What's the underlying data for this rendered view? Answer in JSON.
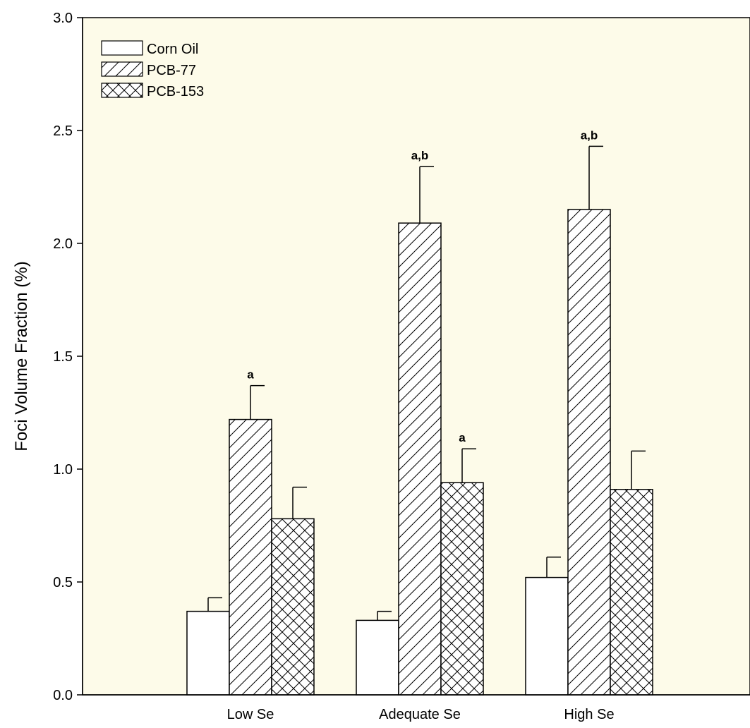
{
  "colors": {
    "plot_background": "#fdfbe9",
    "bar_fill": "#ffffff",
    "stroke": "#000000"
  },
  "chart_data": {
    "type": "bar",
    "title": "",
    "xlabel": "",
    "ylabel": "Foci Volume Fraction (%)",
    "ylim": [
      0.0,
      3.0
    ],
    "yticks": [
      "0.0",
      "0.5",
      "1.0",
      "1.5",
      "2.0",
      "2.5",
      "3.0"
    ],
    "grid": false,
    "legend_position": "top-left",
    "categories": [
      "Low Se",
      "Adequate Se",
      "High Se"
    ],
    "series": [
      {
        "name": "Corn Oil",
        "pattern": "none",
        "values": [
          0.37,
          0.33,
          0.52
        ],
        "errors": [
          0.06,
          0.04,
          0.09
        ],
        "annotations": [
          "",
          "",
          ""
        ]
      },
      {
        "name": "PCB-77",
        "pattern": "diagonal",
        "values": [
          1.22,
          2.09,
          2.15
        ],
        "errors": [
          0.15,
          0.25,
          0.28
        ],
        "annotations": [
          "a",
          "a,b",
          "a,b"
        ]
      },
      {
        "name": "PCB-153",
        "pattern": "crosshatch",
        "values": [
          0.78,
          0.94,
          0.91
        ],
        "errors": [
          0.14,
          0.15,
          0.17
        ],
        "annotations": [
          "",
          "a",
          ""
        ]
      }
    ]
  }
}
